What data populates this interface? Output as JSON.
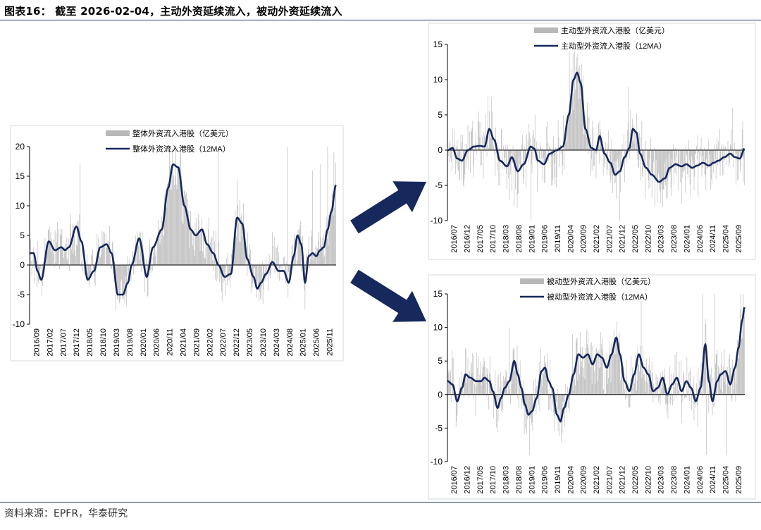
{
  "title": "图表16：  截至 2026-02-04，主动外资延续流入，被动外资延续流入",
  "source": "资料来源：EPFR，华泰研究",
  "colors": {
    "bar": "#b8b8b8",
    "line": "#16285c",
    "arrow": "#16285c",
    "axis": "#000000"
  },
  "chart_data": [
    {
      "id": "total",
      "type": "bar+line",
      "legend": [
        "整体外资流入港股（亿美元）",
        "整体外资流入港股（12MA）"
      ],
      "ylim": [
        -10,
        20
      ],
      "yticks": [
        20,
        15,
        10,
        5,
        0,
        -5,
        -10
      ],
      "xticks": [
        "2016/09",
        "2017/02",
        "2017/07",
        "2017/12",
        "2018/05",
        "2018/10",
        "2019/03",
        "2019/08",
        "2020/01",
        "2020/06",
        "2020/11",
        "2021/04",
        "2021/09",
        "2022/02",
        "2022/07",
        "2022/12",
        "2023/05",
        "2023/10",
        "2024/03",
        "2024/08",
        "2025/01",
        "2025/06",
        "2025/11"
      ],
      "weeks": 488,
      "ma_anchors": [
        [
          0,
          2
        ],
        [
          6,
          2
        ],
        [
          12,
          -1
        ],
        [
          18,
          -2.5
        ],
        [
          30,
          4
        ],
        [
          40,
          2.5
        ],
        [
          50,
          3
        ],
        [
          56,
          2.5
        ],
        [
          62,
          3
        ],
        [
          74,
          6.5
        ],
        [
          82,
          4
        ],
        [
          92,
          -2.5
        ],
        [
          102,
          -1
        ],
        [
          112,
          3
        ],
        [
          122,
          3.5
        ],
        [
          130,
          2
        ],
        [
          140,
          -5
        ],
        [
          148,
          -5
        ],
        [
          156,
          -3
        ],
        [
          162,
          0
        ],
        [
          174,
          4.5
        ],
        [
          186,
          -2
        ],
        [
          196,
          3
        ],
        [
          210,
          6
        ],
        [
          220,
          13
        ],
        [
          228,
          17
        ],
        [
          236,
          16.5
        ],
        [
          246,
          10
        ],
        [
          256,
          6
        ],
        [
          264,
          5
        ],
        [
          274,
          6
        ],
        [
          282,
          3.5
        ],
        [
          292,
          2
        ],
        [
          300,
          0
        ],
        [
          310,
          -2
        ],
        [
          320,
          -1.5
        ],
        [
          330,
          8
        ],
        [
          338,
          7
        ],
        [
          346,
          1
        ],
        [
          356,
          -2
        ],
        [
          362,
          -4
        ],
        [
          368,
          -3
        ],
        [
          376,
          -1.5
        ],
        [
          386,
          0.5
        ],
        [
          396,
          -1
        ],
        [
          404,
          -1
        ],
        [
          412,
          -3
        ],
        [
          420,
          1.5
        ],
        [
          426,
          5
        ],
        [
          432,
          3.5
        ],
        [
          438,
          -3
        ],
        [
          444,
          1.5
        ],
        [
          450,
          2
        ],
        [
          456,
          1.5
        ],
        [
          462,
          2.5
        ],
        [
          468,
          3
        ],
        [
          474,
          6
        ],
        [
          480,
          9
        ],
        [
          487,
          13.5
        ]
      ],
      "bar_peaks": [
        [
          68,
          7
        ],
        [
          80,
          17
        ],
        [
          168,
          5
        ],
        [
          222,
          20
        ],
        [
          232,
          20
        ],
        [
          240,
          19.5
        ],
        [
          300,
          20
        ],
        [
          330,
          14.5
        ],
        [
          410,
          20
        ],
        [
          450,
          16
        ],
        [
          462,
          17
        ],
        [
          474,
          20
        ],
        [
          484,
          19
        ]
      ]
    },
    {
      "id": "active",
      "type": "bar+line",
      "legend": [
        "主动型外资流入港股（亿美元）",
        "主动型外资流入港股（12MA）"
      ],
      "ylim": [
        -10,
        15
      ],
      "yticks": [
        15,
        10,
        5,
        0,
        -5,
        -10
      ],
      "xticks": [
        "2016/07",
        "2016/12",
        "2017/05",
        "2017/10",
        "2018/03",
        "2018/08",
        "2019/01",
        "2019/06",
        "2019/11",
        "2020/04",
        "2020/09",
        "2021/02",
        "2021/07",
        "2021/12",
        "2022/05",
        "2022/10",
        "2023/03",
        "2023/08",
        "2024/01",
        "2024/06",
        "2024/11",
        "2025/04",
        "2025/09"
      ],
      "weeks": 501,
      "ma_anchors": [
        [
          0,
          0
        ],
        [
          8,
          0.3
        ],
        [
          16,
          -1.2
        ],
        [
          24,
          -1.5
        ],
        [
          34,
          0
        ],
        [
          44,
          0.5
        ],
        [
          54,
          0.6
        ],
        [
          62,
          0.5
        ],
        [
          70,
          3
        ],
        [
          78,
          1.5
        ],
        [
          88,
          -1.5
        ],
        [
          100,
          -2.3
        ],
        [
          108,
          -1
        ],
        [
          118,
          -3
        ],
        [
          128,
          -2
        ],
        [
          140,
          0.5
        ],
        [
          146,
          0.2
        ],
        [
          152,
          -1.5
        ],
        [
          162,
          -2
        ],
        [
          172,
          -0.5
        ],
        [
          184,
          0
        ],
        [
          194,
          0.5
        ],
        [
          204,
          5
        ],
        [
          212,
          10
        ],
        [
          218,
          11
        ],
        [
          224,
          9.5
        ],
        [
          232,
          3
        ],
        [
          242,
          0.3
        ],
        [
          250,
          0
        ],
        [
          256,
          2
        ],
        [
          264,
          -0.5
        ],
        [
          274,
          -1.8
        ],
        [
          282,
          -3.5
        ],
        [
          290,
          -3
        ],
        [
          298,
          -1
        ],
        [
          306,
          0.3
        ],
        [
          312,
          3
        ],
        [
          318,
          2.5
        ],
        [
          324,
          -0.5
        ],
        [
          334,
          -2.5
        ],
        [
          344,
          -3.5
        ],
        [
          356,
          -4.5
        ],
        [
          366,
          -4
        ],
        [
          374,
          -2.5
        ],
        [
          384,
          -2
        ],
        [
          394,
          -2.3
        ],
        [
          402,
          -2
        ],
        [
          412,
          -2.5
        ],
        [
          420,
          -2.2
        ],
        [
          430,
          -1.8
        ],
        [
          440,
          -2.2
        ],
        [
          448,
          -1.8
        ],
        [
          456,
          -1.5
        ],
        [
          466,
          -1
        ],
        [
          476,
          -0.5
        ],
        [
          484,
          -1
        ],
        [
          492,
          -1.2
        ],
        [
          500,
          0.2
        ]
      ],
      "bar_peaks": [
        [
          74,
          7.5
        ],
        [
          112,
          -8
        ],
        [
          140,
          -10
        ],
        [
          205,
          14
        ],
        [
          214,
          14
        ],
        [
          222,
          12
        ],
        [
          290,
          -10
        ],
        [
          304,
          9
        ],
        [
          358,
          -6
        ],
        [
          480,
          6
        ]
      ]
    },
    {
      "id": "passive",
      "type": "bar+line",
      "legend": [
        "被动型外资流入港股（亿美元）",
        "被动型外资流入港股（12MA）"
      ],
      "ylim": [
        -10,
        15
      ],
      "yticks": [
        15,
        10,
        5,
        0,
        -5,
        -10
      ],
      "xticks": [
        "2016/07",
        "2016/12",
        "2017/05",
        "2017/10",
        "2018/03",
        "2018/08",
        "2019/01",
        "2019/06",
        "2019/11",
        "2020/04",
        "2020/09",
        "2021/02",
        "2021/07",
        "2021/12",
        "2022/05",
        "2022/10",
        "2023/03",
        "2023/08",
        "2024/01",
        "2024/06",
        "2024/11",
        "2025/04",
        "2025/09"
      ],
      "weeks": 501,
      "ma_anchors": [
        [
          0,
          2
        ],
        [
          8,
          1.5
        ],
        [
          16,
          -1
        ],
        [
          24,
          1
        ],
        [
          30,
          3
        ],
        [
          38,
          2.5
        ],
        [
          48,
          2
        ],
        [
          56,
          2
        ],
        [
          62,
          2.5
        ],
        [
          70,
          2
        ],
        [
          76,
          0.5
        ],
        [
          84,
          -2
        ],
        [
          90,
          -0.5
        ],
        [
          96,
          1
        ],
        [
          104,
          2
        ],
        [
          112,
          5
        ],
        [
          118,
          3
        ],
        [
          124,
          1
        ],
        [
          130,
          -1.5
        ],
        [
          136,
          -3
        ],
        [
          142,
          -2.5
        ],
        [
          150,
          -0.5
        ],
        [
          158,
          3.5
        ],
        [
          164,
          4
        ],
        [
          170,
          2
        ],
        [
          176,
          1
        ],
        [
          184,
          -3
        ],
        [
          190,
          -4
        ],
        [
          196,
          -2
        ],
        [
          204,
          0
        ],
        [
          212,
          3
        ],
        [
          220,
          6
        ],
        [
          228,
          5.5
        ],
        [
          236,
          6
        ],
        [
          244,
          4.5
        ],
        [
          252,
          6
        ],
        [
          260,
          5.5
        ],
        [
          268,
          4
        ],
        [
          276,
          6
        ],
        [
          284,
          8.5
        ],
        [
          290,
          6
        ],
        [
          298,
          2
        ],
        [
          306,
          0.5
        ],
        [
          314,
          3
        ],
        [
          322,
          6
        ],
        [
          330,
          4
        ],
        [
          338,
          3
        ],
        [
          346,
          0.5
        ],
        [
          354,
          1
        ],
        [
          362,
          2.5
        ],
        [
          370,
          0
        ],
        [
          378,
          1.5
        ],
        [
          386,
          2.5
        ],
        [
          394,
          0.5
        ],
        [
          402,
          2
        ],
        [
          410,
          1
        ],
        [
          418,
          -1
        ],
        [
          426,
          1
        ],
        [
          434,
          7.5
        ],
        [
          440,
          2
        ],
        [
          446,
          -1
        ],
        [
          454,
          2
        ],
        [
          460,
          3
        ],
        [
          468,
          3.5
        ],
        [
          476,
          1.5
        ],
        [
          484,
          4
        ],
        [
          490,
          7
        ],
        [
          496,
          11
        ],
        [
          500,
          13
        ]
      ],
      "bar_peaks": [
        [
          104,
          10
        ],
        [
          112,
          7
        ],
        [
          138,
          -9
        ],
        [
          210,
          9
        ],
        [
          284,
          8
        ],
        [
          326,
          14
        ],
        [
          430,
          15
        ],
        [
          436,
          -9
        ],
        [
          450,
          15
        ],
        [
          470,
          -9
        ],
        [
          494,
          15
        ],
        [
          498,
          15
        ]
      ]
    }
  ]
}
